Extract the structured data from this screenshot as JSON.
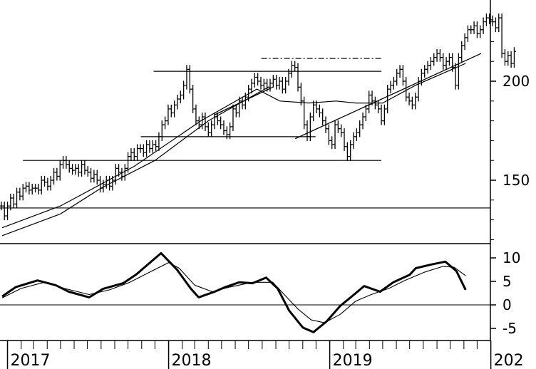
{
  "chart_data": [
    {
      "type": "ohlc",
      "y_ticks": [
        {
          "value": 200,
          "label": "200"
        },
        {
          "value": 150,
          "label": "150"
        }
      ],
      "ylim": [
        110,
        238
      ],
      "xlim": [
        "2016-12-15",
        "2019-12-31"
      ],
      "x_tick_labels": [
        "2017",
        "2018",
        "2019",
        "202"
      ],
      "x_tick_dates": [
        "2017-01-01",
        "2018-01-01",
        "2019-01-01",
        "2020-01-01"
      ],
      "grid": false,
      "weekly_close": [
        [
          137,
          132,
          137,
          141,
          138,
          144,
          142,
          146,
          147,
          145,
          146,
          146,
          145,
          150,
          149,
          147,
          150,
          154,
          152,
          158,
          160,
          158,
          156,
          155,
          156,
          154,
          158,
          155,
          154,
          151,
          153,
          150,
          146,
          148,
          150,
          147,
          150,
          156,
          154,
          152,
          156,
          162,
          164,
          162,
          166,
          166,
          164,
          168,
          166,
          168,
          167,
          172,
          178,
          180,
          186,
          184,
          188,
          191,
          193,
          198,
          206,
          196,
          186,
          180,
          178,
          182,
          177,
          174,
          178,
          182,
          180,
          178,
          175,
          173,
          177,
          186,
          184,
          190,
          188,
          192,
          196,
          199,
          202,
          200,
          198,
          199,
          197,
          199,
          201,
          198,
          200,
          196,
          200,
          204,
          208,
          207,
          197,
          190,
          178,
          172,
          182,
          188,
          186,
          184,
          180,
          176,
          170,
          168,
          178,
          176,
          174,
          167,
          162,
          168,
          172,
          174,
          178,
          182,
          186,
          193,
          190,
          188,
          186,
          180,
          186,
          196,
          198,
          200,
          204,
          206,
          200,
          192,
          190,
          188,
          192,
          200,
          204,
          206,
          208,
          210,
          212,
          214,
          212,
          208,
          210,
          212,
          207,
          198,
          212,
          218,
          222,
          226,
          226,
          228,
          224,
          226,
          230,
          232,
          231,
          230,
          227,
          232,
          214,
          210,
          213,
          209,
          215
        ]
      ],
      "moving_averages": [
        {
          "points": [
            [
              "2016-12-20",
              126
            ],
            [
              "2017-05-01",
              137
            ],
            [
              "2017-10-15",
              157
            ],
            [
              "2018-03-15",
              180
            ],
            [
              "2018-07-20",
              196
            ],
            [
              "2018-09-10",
              190
            ],
            [
              "2018-11-15",
              189
            ],
            [
              "2019-01-15",
              190
            ],
            [
              "2019-03-01",
              189
            ],
            [
              "2019-05-01",
              189
            ],
            [
              "2019-07-15",
              198
            ],
            [
              "2019-11-05",
              209
            ]
          ]
        },
        {
          "points": [
            [
              "2016-12-20",
              122
            ],
            [
              "2017-05-01",
              133
            ],
            [
              "2017-08-01",
              146
            ],
            [
              "2017-12-01",
              160
            ],
            [
              "2018-04-01",
              180
            ],
            [
              "2018-08-15",
              197
            ]
          ]
        }
      ],
      "horizontal_lines": [
        {
          "y": 205,
          "from": "2017-11-28",
          "to": "2019-04-28",
          "style": "solid"
        },
        {
          "y": 211.5,
          "from": "2018-07-30",
          "to": "2019-04-28",
          "style": "dashdot"
        },
        {
          "y": 172,
          "from": "2017-10-30",
          "to": "2018-11-30",
          "style": "solid"
        },
        {
          "y": 160,
          "from": "2017-02-05",
          "to": "2019-04-28",
          "style": "solid"
        },
        {
          "y": 136,
          "from": "2016-12-15",
          "to": "2019-12-31",
          "style": "solid"
        }
      ],
      "trend_lines": [
        {
          "from": [
            "2018-10-15",
            171
          ],
          "to": [
            "2019-12-10",
            214
          ]
        },
        {
          "from": [
            "2018-04-15",
            183
          ],
          "to": [
            "2018-08-25",
            197
          ]
        }
      ]
    },
    {
      "type": "line",
      "y_ticks": [
        {
          "value": 10,
          "label": "10"
        },
        {
          "value": 5,
          "label": "5"
        },
        {
          "value": 0,
          "label": "0"
        },
        {
          "value": -5,
          "label": "-5"
        }
      ],
      "ylim": [
        -7.5,
        12.5
      ],
      "zero_line": 0,
      "series": [
        {
          "role": "oscillator",
          "points": [
            [
              "2016-12-20",
              1.8
            ],
            [
              "2017-01-20",
              3.8
            ],
            [
              "2017-03-10",
              5.2
            ],
            [
              "2017-04-20",
              4.2
            ],
            [
              "2017-05-20",
              2.8
            ],
            [
              "2017-07-05",
              1.6
            ],
            [
              "2017-08-05",
              3.4
            ],
            [
              "2017-09-20",
              4.6
            ],
            [
              "2017-10-20",
              6.5
            ],
            [
              "2017-11-20",
              9.0
            ],
            [
              "2017-12-15",
              11.0
            ],
            [
              "2018-01-20",
              7.5
            ],
            [
              "2018-02-20",
              3.5
            ],
            [
              "2018-03-10",
              1.6
            ],
            [
              "2018-04-15",
              2.8
            ],
            [
              "2018-05-10",
              3.8
            ],
            [
              "2018-06-10",
              4.8
            ],
            [
              "2018-07-10",
              4.6
            ],
            [
              "2018-08-10",
              5.8
            ],
            [
              "2018-09-05",
              3.5
            ],
            [
              "2018-10-01",
              -1.2
            ],
            [
              "2018-11-01",
              -4.8
            ],
            [
              "2018-11-25",
              -5.8
            ],
            [
              "2018-12-25",
              -3.5
            ],
            [
              "2019-01-25",
              -0.2
            ],
            [
              "2019-02-20",
              1.8
            ],
            [
              "2019-03-20",
              4.0
            ],
            [
              "2019-04-25",
              2.8
            ],
            [
              "2019-05-25",
              4.8
            ],
            [
              "2019-07-01",
              6.4
            ],
            [
              "2019-07-15",
              7.8
            ],
            [
              "2019-08-20",
              8.6
            ],
            [
              "2019-09-20",
              9.2
            ],
            [
              "2019-10-15",
              7.2
            ],
            [
              "2019-11-05",
              3.2
            ]
          ]
        },
        {
          "role": "signal",
          "points": [
            [
              "2016-12-20",
              1.5
            ],
            [
              "2017-02-01",
              3.5
            ],
            [
              "2017-03-25",
              4.8
            ],
            [
              "2017-05-10",
              3.5
            ],
            [
              "2017-07-05",
              2.2
            ],
            [
              "2017-08-20",
              3.2
            ],
            [
              "2017-10-05",
              4.8
            ],
            [
              "2017-11-20",
              7.0
            ],
            [
              "2018-01-01",
              9.0
            ],
            [
              "2018-01-25",
              7.8
            ],
            [
              "2018-03-01",
              4.2
            ],
            [
              "2018-04-10",
              2.8
            ],
            [
              "2018-05-20",
              3.8
            ],
            [
              "2018-07-10",
              4.8
            ],
            [
              "2018-08-25",
              4.8
            ],
            [
              "2018-09-20",
              2.2
            ],
            [
              "2018-10-20",
              -0.8
            ],
            [
              "2018-11-20",
              -3.2
            ],
            [
              "2018-12-20",
              -3.8
            ],
            [
              "2019-01-25",
              -2.0
            ],
            [
              "2019-03-01",
              0.8
            ],
            [
              "2019-04-05",
              2.2
            ],
            [
              "2019-05-15",
              3.5
            ],
            [
              "2019-06-20",
              5.2
            ],
            [
              "2019-08-05",
              7.0
            ],
            [
              "2019-09-15",
              8.2
            ],
            [
              "2019-10-10",
              8.0
            ],
            [
              "2019-11-05",
              6.2
            ]
          ]
        }
      ]
    }
  ]
}
